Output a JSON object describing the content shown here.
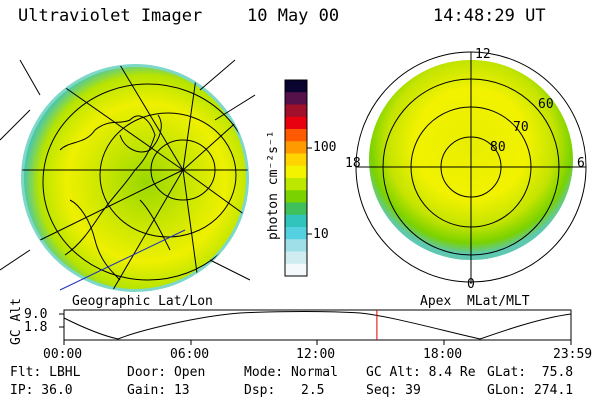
{
  "header": {
    "instrument": "Ultraviolet Imager",
    "date": "10 May 00",
    "time": "14:48:29 UT"
  },
  "colors": {
    "ring": "#000000",
    "timeline_marker": "#e00000"
  },
  "colorbar": {
    "label": "photon cm⁻²s⁻¹",
    "scale": "log",
    "ticks": [
      "100",
      "10"
    ],
    "colors_top_to_bottom": [
      "#0a0530",
      "#55124a",
      "#a0102a",
      "#e80010",
      "#ff5a00",
      "#ff9a00",
      "#ffd400",
      "#f3f300",
      "#bce800",
      "#7ad200",
      "#40c05a",
      "#30c4bc",
      "#55d0e0",
      "#9edfe8",
      "#d0ecf0",
      "#f4fafb"
    ]
  },
  "geo_panel": {
    "label": "Geographic Lat/Lon"
  },
  "apex_panel": {
    "label": "Apex  MLat/MLT",
    "lat_labels": [
      "60",
      "70",
      "80"
    ],
    "mlt_labels": {
      "top": "12",
      "left": "18",
      "right": "6",
      "bottom": "0"
    }
  },
  "timeline": {
    "axis_label": "GC Alt",
    "y_ticks": [
      "9.0",
      "1.8"
    ],
    "x_ticks": [
      "00:00",
      "06:00",
      "12:00",
      "18:00",
      "23:59"
    ],
    "marker_time": "14:48"
  },
  "info": {
    "flt": "Flt: LBHL",
    "ip": "IP: 36.0",
    "door": "Door: Open",
    "gain": "Gain: 13",
    "mode": "Mode: Normal",
    "dsp_label": "Dsp:",
    "dsp_value": "2.5",
    "gc_alt": "GC Alt: 8.4 Re",
    "seq": "Seq: 39",
    "glat": "GLat:  75.8",
    "glon": "GLon: 274.1"
  }
}
